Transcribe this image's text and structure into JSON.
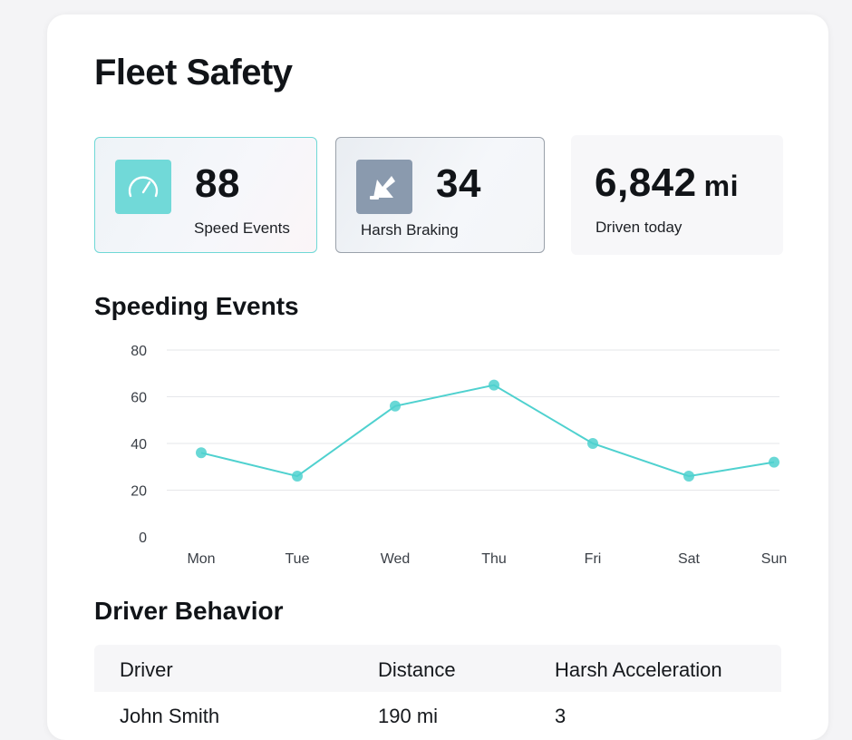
{
  "page": {
    "title": "Fleet Safety"
  },
  "stats": [
    {
      "value": "88",
      "label": "Speed Events",
      "icon": "speedometer-icon",
      "accent": "#71d9d8"
    },
    {
      "value": "34",
      "label": "Harsh Braking",
      "icon": "harsh-braking-icon",
      "accent": "#8a9aae"
    },
    {
      "value": "6,842",
      "unit": "mi",
      "label": "Driven today"
    }
  ],
  "chart": {
    "title": "Speeding Events",
    "color": "#4fd1cf"
  },
  "chart_data": {
    "type": "line",
    "title": "Speeding Events",
    "categories": [
      "Mon",
      "Tue",
      "Wed",
      "Thu",
      "Fri",
      "Sat",
      "Sun"
    ],
    "values": [
      36,
      26,
      56,
      65,
      40,
      26,
      32
    ],
    "yticks": [
      "80",
      "60",
      "40",
      "20",
      "0"
    ],
    "ylim": [
      0,
      80
    ],
    "grid": true,
    "legend": "none"
  },
  "driver_table": {
    "title": "Driver Behavior",
    "columns": [
      "Driver",
      "Distance",
      "Harsh Acceleration"
    ],
    "rows": [
      [
        "John Smith",
        "190 mi",
        "3"
      ]
    ]
  }
}
